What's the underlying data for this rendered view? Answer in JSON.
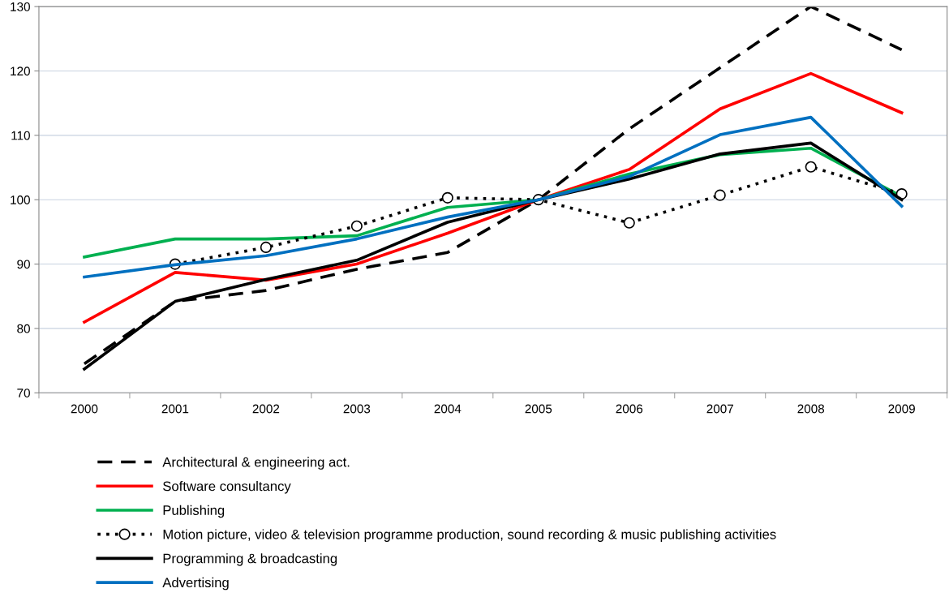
{
  "chart_data": {
    "type": "line",
    "categories": [
      "2000",
      "2001",
      "2002",
      "2003",
      "2004",
      "2005",
      "2006",
      "2007",
      "2008",
      "2009"
    ],
    "series": [
      {
        "name": "Architectural & engineering act.",
        "color": "#000000",
        "line_style": "dashed",
        "marker": "none",
        "values": [
          74.5,
          84.2,
          85.9,
          89.2,
          91.8,
          100,
          111,
          120.5,
          130,
          123.3
        ]
      },
      {
        "name": "Software consultancy",
        "color": "#ff0000",
        "line_style": "solid",
        "marker": "none",
        "values": [
          81,
          88.7,
          87.5,
          90,
          94.8,
          100,
          104.7,
          114.1,
          119.6,
          113.5
        ]
      },
      {
        "name": "Publishing",
        "color": "#00b050",
        "line_style": "solid",
        "marker": "none",
        "values": [
          91.1,
          93.9,
          93.9,
          94.4,
          98.8,
          100,
          104,
          107,
          108,
          100.5
        ]
      },
      {
        "name": "Motion picture, video & television programme production, sound recording & music publishing activities",
        "color": "#000000",
        "line_style": "dotted",
        "marker": "circle",
        "values": [
          null,
          90,
          92.6,
          95.9,
          100.3,
          100,
          96.4,
          100.7,
          105.1,
          100.9
        ]
      },
      {
        "name": "Programming & broadcasting",
        "color": "#000000",
        "line_style": "solid",
        "marker": "none",
        "values": [
          73.7,
          84.2,
          87.6,
          90.6,
          96.5,
          100,
          103.2,
          107.1,
          108.8,
          100
        ]
      },
      {
        "name": "Advertising",
        "color": "#0070c0",
        "line_style": "solid",
        "marker": "none",
        "values": [
          88,
          89.9,
          91.3,
          93.9,
          97.3,
          100,
          103.6,
          110.1,
          112.8,
          99
        ]
      }
    ],
    "ylim": [
      70,
      130
    ],
    "yticks": [
      70,
      80,
      90,
      100,
      110,
      120,
      130
    ],
    "grid": "y",
    "legend": "bottom"
  }
}
